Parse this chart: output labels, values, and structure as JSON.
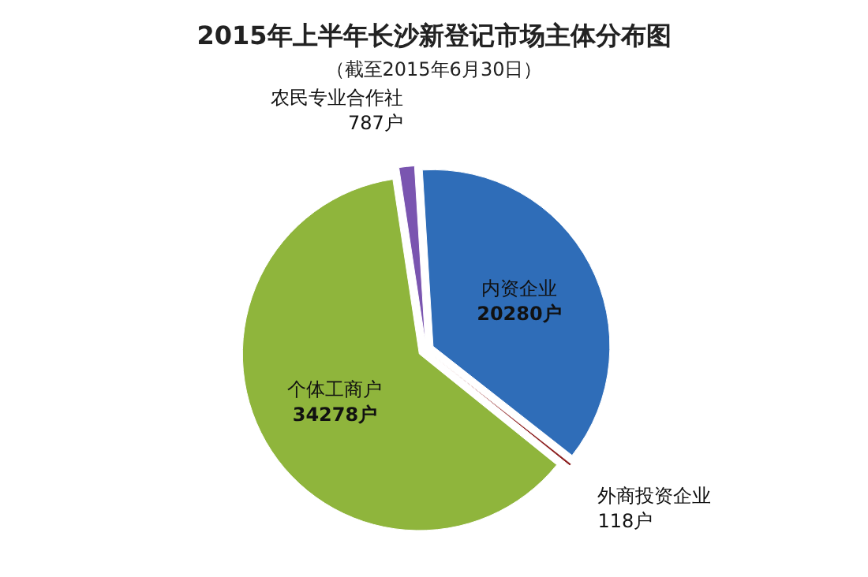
{
  "chart_data": {
    "type": "pie",
    "title": "2015年上半年长沙新登记市场主体分布图",
    "subtitle": "（截至2015年6月30日）",
    "categories": [
      "农民专业合作社",
      "内资企业",
      "外商投资企业",
      "个体工商户"
    ],
    "values": [
      787,
      20280,
      118,
      34278
    ],
    "colors": [
      "#7a55b0",
      "#2f6db8",
      "#8b1c1c",
      "#8fb53c"
    ],
    "value_labels": [
      "787户",
      "20280户",
      "118户",
      "34278户"
    ]
  }
}
